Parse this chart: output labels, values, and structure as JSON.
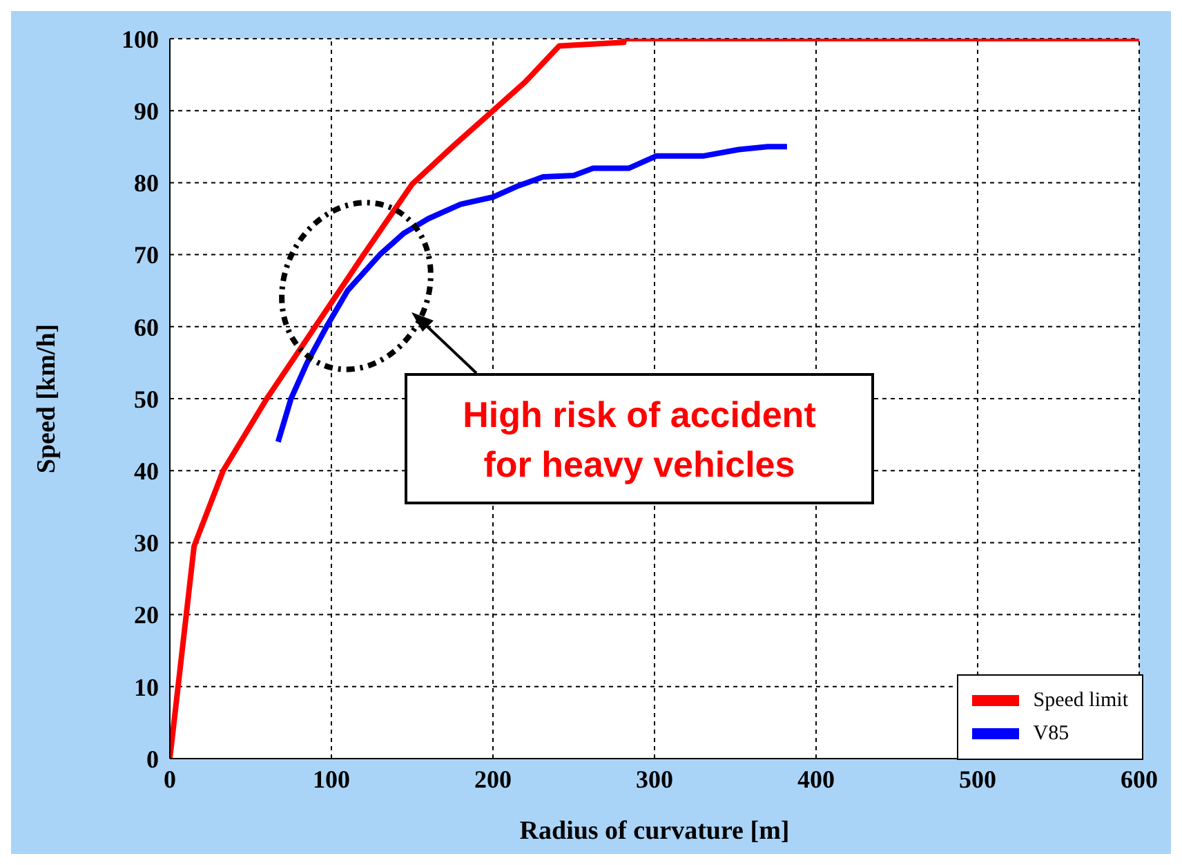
{
  "chart_data": {
    "type": "line",
    "xlabel": "Radius of curvature  [m]",
    "ylabel": "Speed [km/h]",
    "xlim": [
      0,
      600
    ],
    "xticks": [
      0,
      100,
      200,
      300,
      400,
      500,
      600
    ],
    "ylim": [
      0,
      100
    ],
    "yticks": [
      0,
      10,
      20,
      30,
      40,
      50,
      60,
      70,
      80,
      90,
      100
    ],
    "grid": true,
    "legend": "bottom right",
    "marker": "none",
    "line_style": "solid",
    "series": [
      {
        "name": "Speed limit",
        "color": "#ff0000",
        "x": [
          0,
          15,
          33,
          60,
          90,
          120,
          150,
          175,
          200,
          220,
          241,
          281,
          281,
          600
        ],
        "values": [
          0,
          29.5,
          40,
          50,
          60,
          70,
          79.8,
          85,
          90,
          94,
          99,
          99.5,
          100,
          100
        ]
      },
      {
        "name": "V85",
        "color": "#0000ff",
        "x": [
          67,
          75,
          85,
          97,
          110,
          130,
          145,
          160,
          180,
          200,
          215,
          231,
          250,
          262,
          284,
          301,
          330,
          352,
          370,
          382
        ],
        "values": [
          44,
          50,
          55,
          60,
          65,
          70,
          73,
          75,
          77,
          78,
          79.5,
          80.8,
          81,
          82,
          82,
          83.7,
          83.7,
          84.6,
          85,
          85
        ]
      }
    ],
    "annotations": [
      "High risk of accident\nfor heavy vehicles"
    ]
  }
}
